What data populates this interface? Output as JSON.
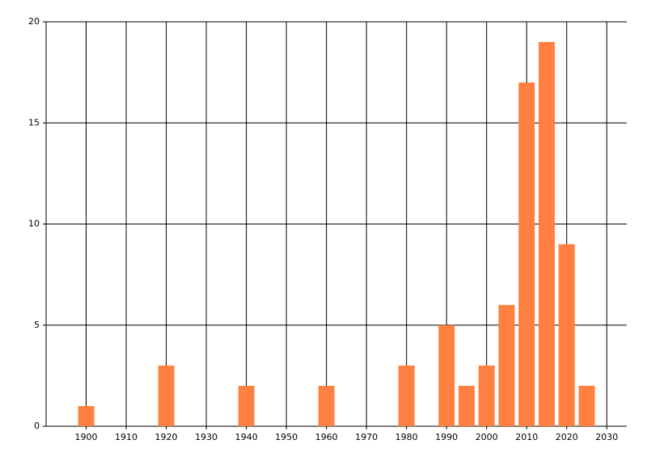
{
  "chart_data": {
    "type": "bar",
    "x": [
      1900,
      1920,
      1940,
      1960,
      1980,
      1990,
      1995,
      2000,
      2005,
      2010,
      2015,
      2020,
      2025
    ],
    "values": [
      1,
      3,
      2,
      2,
      3,
      5,
      2,
      3,
      6,
      17,
      19,
      9,
      2
    ],
    "color": "#ff8040",
    "xlim": [
      1890,
      2035
    ],
    "xticks": [
      1900,
      1910,
      1920,
      1930,
      1940,
      1950,
      1960,
      1970,
      1980,
      1990,
      2000,
      2010,
      2020,
      2030
    ],
    "ylim": [
      0,
      20
    ],
    "yticks": [
      0,
      5,
      10,
      15,
      20
    ],
    "grid": true
  }
}
